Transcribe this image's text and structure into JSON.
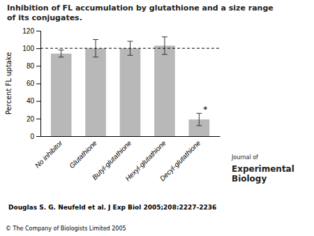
{
  "chart_data": {
    "type": "bar",
    "title": "Inhibition of FL accumulation by glutathione and a size range of its conjugates.",
    "categories": [
      "No inhibitor",
      "Glutathione",
      "Butyl-glutathione",
      "Hexyl-glutathione",
      "Decyl-glutathione"
    ],
    "values": [
      94,
      100,
      100,
      103,
      19
    ],
    "errors": [
      4,
      10,
      8,
      10,
      7
    ],
    "color": "#b8b8b8",
    "ylabel": "Percent FL uptake",
    "ylim": [
      0,
      120
    ],
    "yticks": [
      0,
      20,
      40,
      60,
      80,
      100,
      120
    ],
    "grid": false,
    "reference_line": 100,
    "annotations": [
      {
        "text": "*",
        "category": "Decyl-glutathione"
      }
    ],
    "citation": "Douglas S. G. Neufeld et al. J Exp Biol 2005;208:2227-2236",
    "copyright": "© The Company of Biologists Limited 2005",
    "logo_text": [
      "Journal of",
      "Experimental",
      "Biology"
    ]
  }
}
